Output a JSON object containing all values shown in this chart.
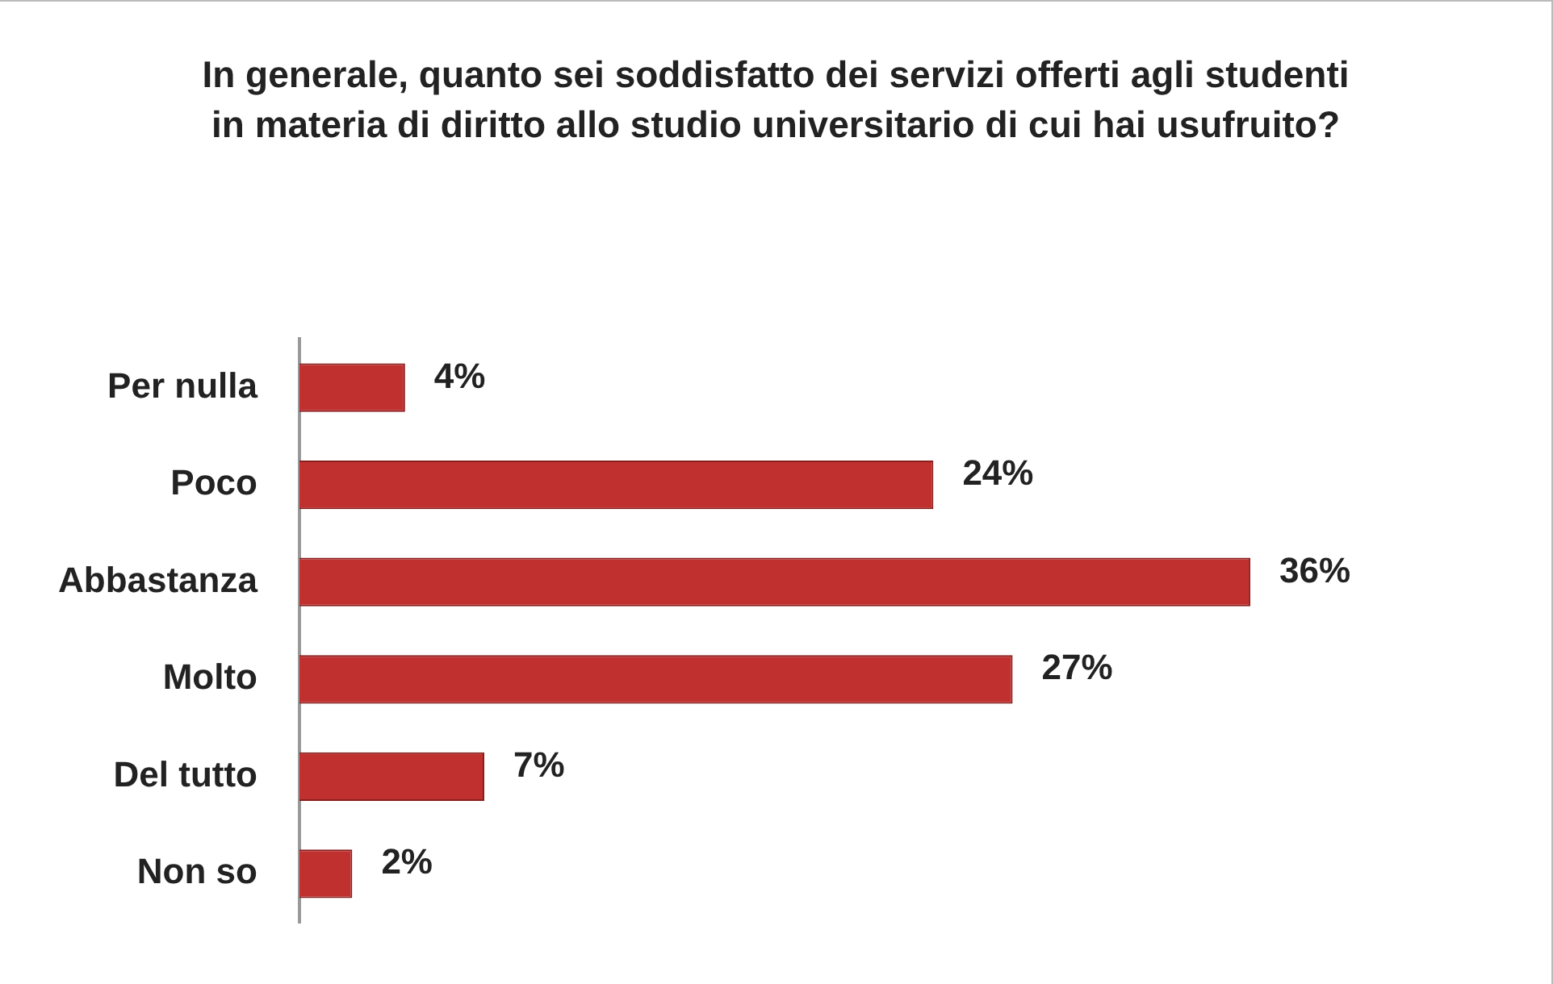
{
  "chart_data": {
    "type": "bar",
    "orientation": "horizontal",
    "title": "In generale, quanto sei soddisfatto dei servizi offerti agli studenti in materia di diritto allo studio universitario di cui hai usufruito?",
    "categories": [
      "Per nulla",
      "Poco",
      "Abbastanza",
      "Molto",
      "Del tutto",
      "Non so"
    ],
    "values": [
      4,
      24,
      36,
      27,
      7,
      2
    ],
    "value_labels": [
      "4%",
      "24%",
      "36%",
      "27%",
      "7%",
      "2%"
    ],
    "color": "#c0302f"
  }
}
